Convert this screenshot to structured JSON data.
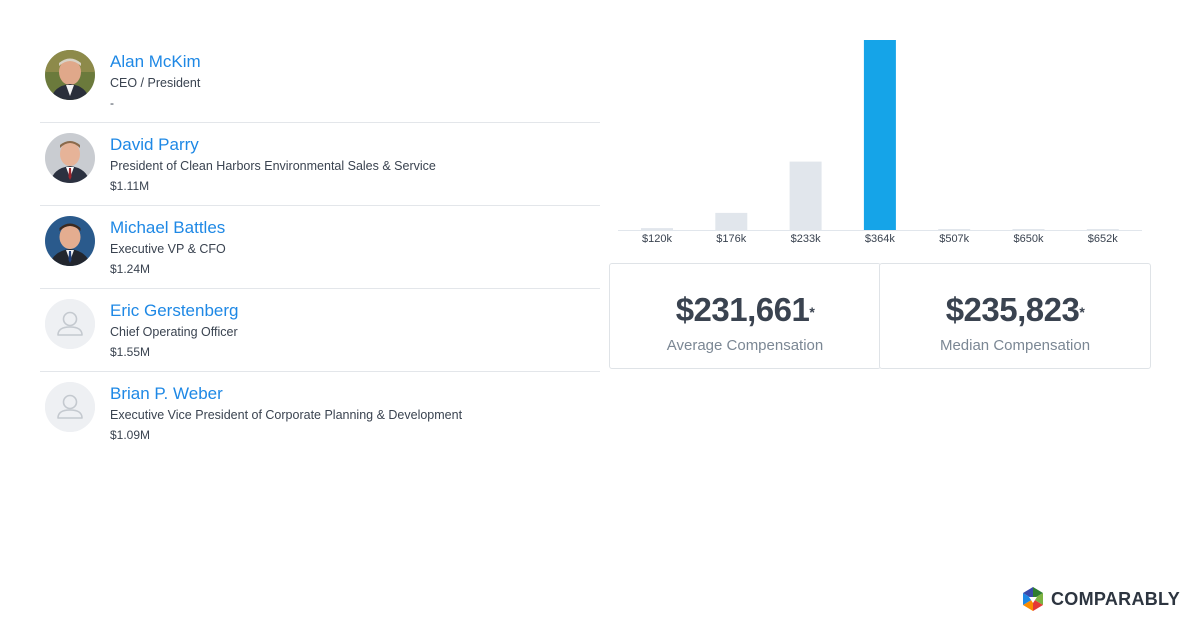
{
  "executives": [
    {
      "name": "Alan McKim",
      "title": "CEO / President",
      "compensation": "-",
      "avatar": "photo"
    },
    {
      "name": "David Parry",
      "title": "President of Clean Harbors Environmental Sales & Service",
      "compensation": "$1.11M",
      "avatar": "photo"
    },
    {
      "name": "Michael Battles",
      "title": "Executive VP & CFO",
      "compensation": "$1.24M",
      "avatar": "photo"
    },
    {
      "name": "Eric Gerstenberg",
      "title": "Chief Operating Officer",
      "compensation": "$1.55M",
      "avatar": "placeholder-user-icon"
    },
    {
      "name": "Brian P. Weber",
      "title": "Executive Vice President of Corporate Planning & Development",
      "compensation": "$1.09M",
      "avatar": "placeholder-user-icon"
    }
  ],
  "chart_data": {
    "type": "bar",
    "categories": [
      "$120k",
      "$176k",
      "$233k",
      "$364k",
      "$507k",
      "$650k",
      "$652k"
    ],
    "values": [
      1,
      9,
      36,
      100,
      0.5,
      0.5,
      0.5
    ],
    "highlight_index": 3,
    "title": "",
    "xlabel": "",
    "ylabel": "",
    "ylim": [
      0,
      100
    ],
    "grid": false,
    "colors": {
      "bar": "#e1e6ec",
      "highlight": "#15a4e8",
      "baseline": "#e1e6ec",
      "tick_text": "#3a4350"
    }
  },
  "stats": {
    "average": {
      "value": "$231,661",
      "marker": "*",
      "label": "Average Compensation"
    },
    "median": {
      "value": "$235,823",
      "marker": "*",
      "label": "Median Compensation"
    }
  },
  "brand": {
    "logo_text": "COMPARABLY",
    "colors": [
      "#2e7d32",
      "#7cb342",
      "#e53935",
      "#fb8c00",
      "#1e88e5",
      "#3949ab"
    ]
  }
}
